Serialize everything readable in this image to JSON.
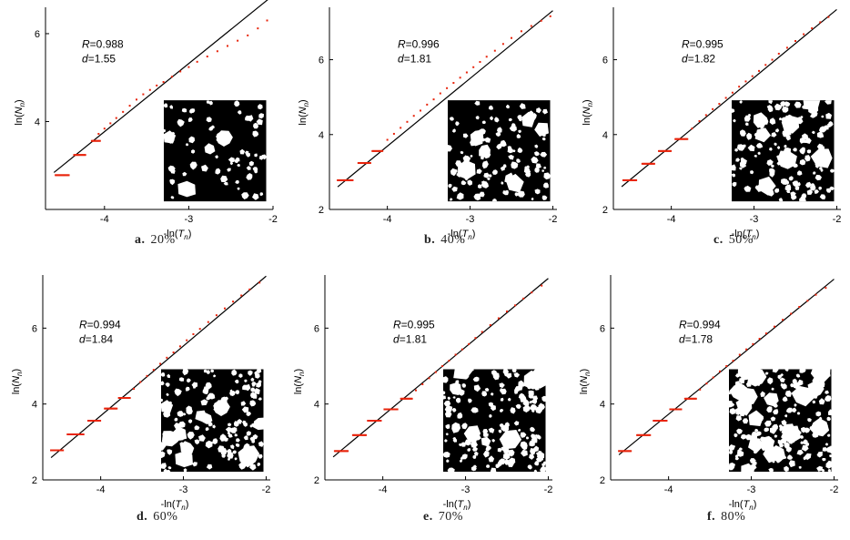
{
  "figure": {
    "axis_titles": {
      "x": [
        "-ln(",
        "T",
        "n",
        ")"
      ],
      "y": [
        "ln(",
        "N",
        "n",
        ")"
      ]
    },
    "colors": {
      "points": "#e8240c",
      "fit": "#000000",
      "inset_bg": "#000000",
      "particles": "#ffffff"
    }
  },
  "chart_data": [
    {
      "type": "scatter",
      "panel_letter": "a.",
      "panel_label": "20%",
      "stats": {
        "R_label": "R",
        "R_value": "=0.988",
        "d_label": "d",
        "d_value": "=1.55"
      },
      "xlim": [
        -4.7,
        -2.0
      ],
      "ylim": [
        2.0,
        6.6
      ],
      "xticks": [
        -4,
        -3,
        -2
      ],
      "yticks": [
        4,
        6
      ],
      "fit": {
        "slope": 1.55,
        "intercept": 9.97,
        "x_range": [
          -4.6,
          -2.0
        ]
      },
      "steps": [
        [
          -4.58,
          -4.42,
          2.78
        ],
        [
          -4.36,
          -4.22,
          3.24
        ],
        [
          -4.15,
          -4.05,
          3.56
        ]
      ],
      "points": [
        [
          -4.07,
          3.72
        ],
        [
          -4.0,
          3.84
        ],
        [
          -3.93,
          3.96
        ],
        [
          -3.86,
          4.08
        ],
        [
          -3.78,
          4.22
        ],
        [
          -3.7,
          4.36
        ],
        [
          -3.62,
          4.5
        ],
        [
          -3.54,
          4.62
        ],
        [
          -3.46,
          4.72
        ],
        [
          -3.38,
          4.82
        ],
        [
          -3.3,
          4.9
        ],
        [
          -3.2,
          5.02
        ],
        [
          -3.1,
          5.14
        ],
        [
          -3.0,
          5.24
        ],
        [
          -2.9,
          5.36
        ],
        [
          -2.78,
          5.48
        ],
        [
          -2.66,
          5.6
        ],
        [
          -2.54,
          5.72
        ],
        [
          -2.42,
          5.84
        ],
        [
          -2.3,
          5.96
        ],
        [
          -2.18,
          6.12
        ],
        [
          -2.07,
          6.3
        ]
      ],
      "inset": {
        "particle_size": 1.6,
        "count": 70
      }
    },
    {
      "type": "scatter",
      "panel_letter": "b.",
      "panel_label": "40%",
      "stats": {
        "R_label": "R",
        "R_value": "=0.996",
        "d_label": "d",
        "d_value": "=1.81"
      },
      "xlim": [
        -4.7,
        -1.95
      ],
      "ylim": [
        2.0,
        7.4
      ],
      "xticks": [
        -4,
        -3,
        -2
      ],
      "yticks": [
        2,
        4,
        6
      ],
      "fit": {
        "slope": 1.81,
        "intercept": 10.93,
        "x_range": [
          -4.6,
          -2.0
        ]
      },
      "steps": [
        [
          -4.6,
          -4.42,
          2.78
        ],
        [
          -4.35,
          -4.2,
          3.24
        ],
        [
          -4.18,
          -4.05,
          3.56
        ]
      ],
      "points": [
        [
          -4.0,
          3.86
        ],
        [
          -3.92,
          4.02
        ],
        [
          -3.84,
          4.18
        ],
        [
          -3.76,
          4.34
        ],
        [
          -3.68,
          4.5
        ],
        [
          -3.6,
          4.64
        ],
        [
          -3.52,
          4.8
        ],
        [
          -3.44,
          4.94
        ],
        [
          -3.36,
          5.1
        ],
        [
          -3.28,
          5.24
        ],
        [
          -3.2,
          5.38
        ],
        [
          -3.12,
          5.52
        ],
        [
          -3.04,
          5.66
        ],
        [
          -2.96,
          5.8
        ],
        [
          -2.88,
          5.94
        ],
        [
          -2.8,
          6.08
        ],
        [
          -2.7,
          6.24
        ],
        [
          -2.6,
          6.42
        ],
        [
          -2.5,
          6.58
        ],
        [
          -2.38,
          6.76
        ],
        [
          -2.26,
          6.9
        ],
        [
          -2.14,
          7.04
        ],
        [
          -2.03,
          7.16
        ]
      ],
      "inset": {
        "particle_size": 1.3,
        "count": 110
      }
    },
    {
      "type": "scatter",
      "panel_letter": "c.",
      "panel_label": "50%",
      "stats": {
        "R_label": "R",
        "R_value": "=0.995",
        "d_label": "d",
        "d_value": "=1.82"
      },
      "xlim": [
        -4.7,
        -1.95
      ],
      "ylim": [
        2.0,
        7.4
      ],
      "xticks": [
        -4,
        -3,
        -2
      ],
      "yticks": [
        2,
        4,
        6
      ],
      "fit": {
        "slope": 1.82,
        "intercept": 10.98,
        "x_range": [
          -4.6,
          -2.0
        ]
      },
      "steps": [
        [
          -4.58,
          -4.42,
          2.78
        ],
        [
          -4.35,
          -4.2,
          3.22
        ],
        [
          -4.15,
          -4.0,
          3.56
        ],
        [
          -3.95,
          -3.8,
          3.88
        ]
      ],
      "points": [
        [
          -3.75,
          4.16
        ],
        [
          -3.66,
          4.36
        ],
        [
          -3.58,
          4.52
        ],
        [
          -3.5,
          4.68
        ],
        [
          -3.42,
          4.82
        ],
        [
          -3.34,
          4.98
        ],
        [
          -3.26,
          5.12
        ],
        [
          -3.18,
          5.28
        ],
        [
          -3.1,
          5.42
        ],
        [
          -3.02,
          5.56
        ],
        [
          -2.94,
          5.7
        ],
        [
          -2.86,
          5.86
        ],
        [
          -2.78,
          6.0
        ],
        [
          -2.7,
          6.16
        ],
        [
          -2.6,
          6.32
        ],
        [
          -2.5,
          6.5
        ],
        [
          -2.4,
          6.68
        ],
        [
          -2.3,
          6.84
        ],
        [
          -2.2,
          7.0
        ],
        [
          -2.1,
          7.14
        ]
      ],
      "inset": {
        "particle_size": 1.15,
        "count": 140
      }
    },
    {
      "type": "scatter",
      "panel_letter": "d.",
      "panel_label": "60%",
      "stats": {
        "R_label": "R",
        "R_value": "=0.994",
        "d_label": "d",
        "d_value": "=1.84"
      },
      "xlim": [
        -4.7,
        -1.95
      ],
      "ylim": [
        2.0,
        7.4
      ],
      "xticks": [
        -4,
        -3,
        -2
      ],
      "yticks": [
        2,
        4,
        6
      ],
      "fit": {
        "slope": 1.84,
        "intercept": 11.05,
        "x_range": [
          -4.6,
          -2.0
        ]
      },
      "steps": [
        [
          -4.6,
          -4.45,
          2.78
        ],
        [
          -4.4,
          -4.2,
          3.2
        ],
        [
          -4.15,
          -4.0,
          3.56
        ],
        [
          -3.95,
          -3.8,
          3.88
        ],
        [
          -3.78,
          -3.64,
          4.16
        ]
      ],
      "points": [
        [
          -3.6,
          4.4
        ],
        [
          -3.52,
          4.58
        ],
        [
          -3.44,
          4.74
        ],
        [
          -3.36,
          4.9
        ],
        [
          -3.28,
          5.06
        ],
        [
          -3.2,
          5.22
        ],
        [
          -3.12,
          5.36
        ],
        [
          -3.04,
          5.52
        ],
        [
          -2.96,
          5.68
        ],
        [
          -2.88,
          5.84
        ],
        [
          -2.8,
          5.98
        ],
        [
          -2.7,
          6.16
        ],
        [
          -2.6,
          6.34
        ],
        [
          -2.5,
          6.52
        ],
        [
          -2.4,
          6.7
        ],
        [
          -2.3,
          6.86
        ],
        [
          -2.2,
          7.02
        ],
        [
          -2.08,
          7.2
        ]
      ],
      "inset": {
        "particle_size": 1.05,
        "count": 160
      }
    },
    {
      "type": "scatter",
      "panel_letter": "e.",
      "panel_label": "70%",
      "stats": {
        "R_label": "R",
        "R_value": "=0.995",
        "d_label": "d",
        "d_value": "=1.81"
      },
      "xlim": [
        -4.7,
        -1.95
      ],
      "ylim": [
        2.0,
        7.4
      ],
      "xticks": [
        -4,
        -3,
        -2
      ],
      "yticks": [
        2,
        4,
        6
      ],
      "fit": {
        "slope": 1.81,
        "intercept": 10.93,
        "x_range": [
          -4.6,
          -2.0
        ]
      },
      "steps": [
        [
          -4.58,
          -4.42,
          2.76
        ],
        [
          -4.36,
          -4.2,
          3.18
        ],
        [
          -4.18,
          -4.02,
          3.56
        ],
        [
          -3.98,
          -3.82,
          3.86
        ],
        [
          -3.78,
          -3.64,
          4.14
        ]
      ],
      "points": [
        [
          -3.6,
          4.36
        ],
        [
          -3.52,
          4.52
        ],
        [
          -3.44,
          4.68
        ],
        [
          -3.36,
          4.84
        ],
        [
          -3.28,
          5.0
        ],
        [
          -3.2,
          5.14
        ],
        [
          -3.12,
          5.3
        ],
        [
          -3.04,
          5.44
        ],
        [
          -2.96,
          5.58
        ],
        [
          -2.88,
          5.74
        ],
        [
          -2.8,
          5.9
        ],
        [
          -2.7,
          6.08
        ],
        [
          -2.6,
          6.26
        ],
        [
          -2.5,
          6.44
        ],
        [
          -2.4,
          6.6
        ],
        [
          -2.3,
          6.78
        ],
        [
          -2.2,
          6.94
        ],
        [
          -2.08,
          7.12
        ]
      ],
      "inset": {
        "particle_size": 1.0,
        "count": 175
      }
    },
    {
      "type": "scatter",
      "panel_letter": "f.",
      "panel_label": "80%",
      "stats": {
        "R_label": "R",
        "R_value": "=0.994",
        "d_label": "d",
        "d_value": "=1.78"
      },
      "xlim": [
        -4.7,
        -1.95
      ],
      "ylim": [
        2.0,
        7.4
      ],
      "xticks": [
        -4,
        -3,
        -2
      ],
      "yticks": [
        2,
        4,
        6
      ],
      "fit": {
        "slope": 1.78,
        "intercept": 10.85,
        "x_range": [
          -4.6,
          -2.0
        ]
      },
      "steps": [
        [
          -4.6,
          -4.45,
          2.76
        ],
        [
          -4.38,
          -4.22,
          3.18
        ],
        [
          -4.18,
          -4.02,
          3.56
        ],
        [
          -3.98,
          -3.84,
          3.86
        ],
        [
          -3.8,
          -3.66,
          4.14
        ]
      ],
      "points": [
        [
          -3.62,
          4.38
        ],
        [
          -3.54,
          4.54
        ],
        [
          -3.46,
          4.7
        ],
        [
          -3.38,
          4.86
        ],
        [
          -3.3,
          5.0
        ],
        [
          -3.22,
          5.14
        ],
        [
          -3.14,
          5.3
        ],
        [
          -3.06,
          5.44
        ],
        [
          -2.98,
          5.58
        ],
        [
          -2.9,
          5.72
        ],
        [
          -2.82,
          5.86
        ],
        [
          -2.72,
          6.04
        ],
        [
          -2.62,
          6.22
        ],
        [
          -2.52,
          6.38
        ],
        [
          -2.42,
          6.56
        ],
        [
          -2.32,
          6.72
        ],
        [
          -2.22,
          6.88
        ],
        [
          -2.1,
          7.06
        ]
      ],
      "inset": {
        "particle_size": 0.95,
        "count": 190
      }
    }
  ]
}
